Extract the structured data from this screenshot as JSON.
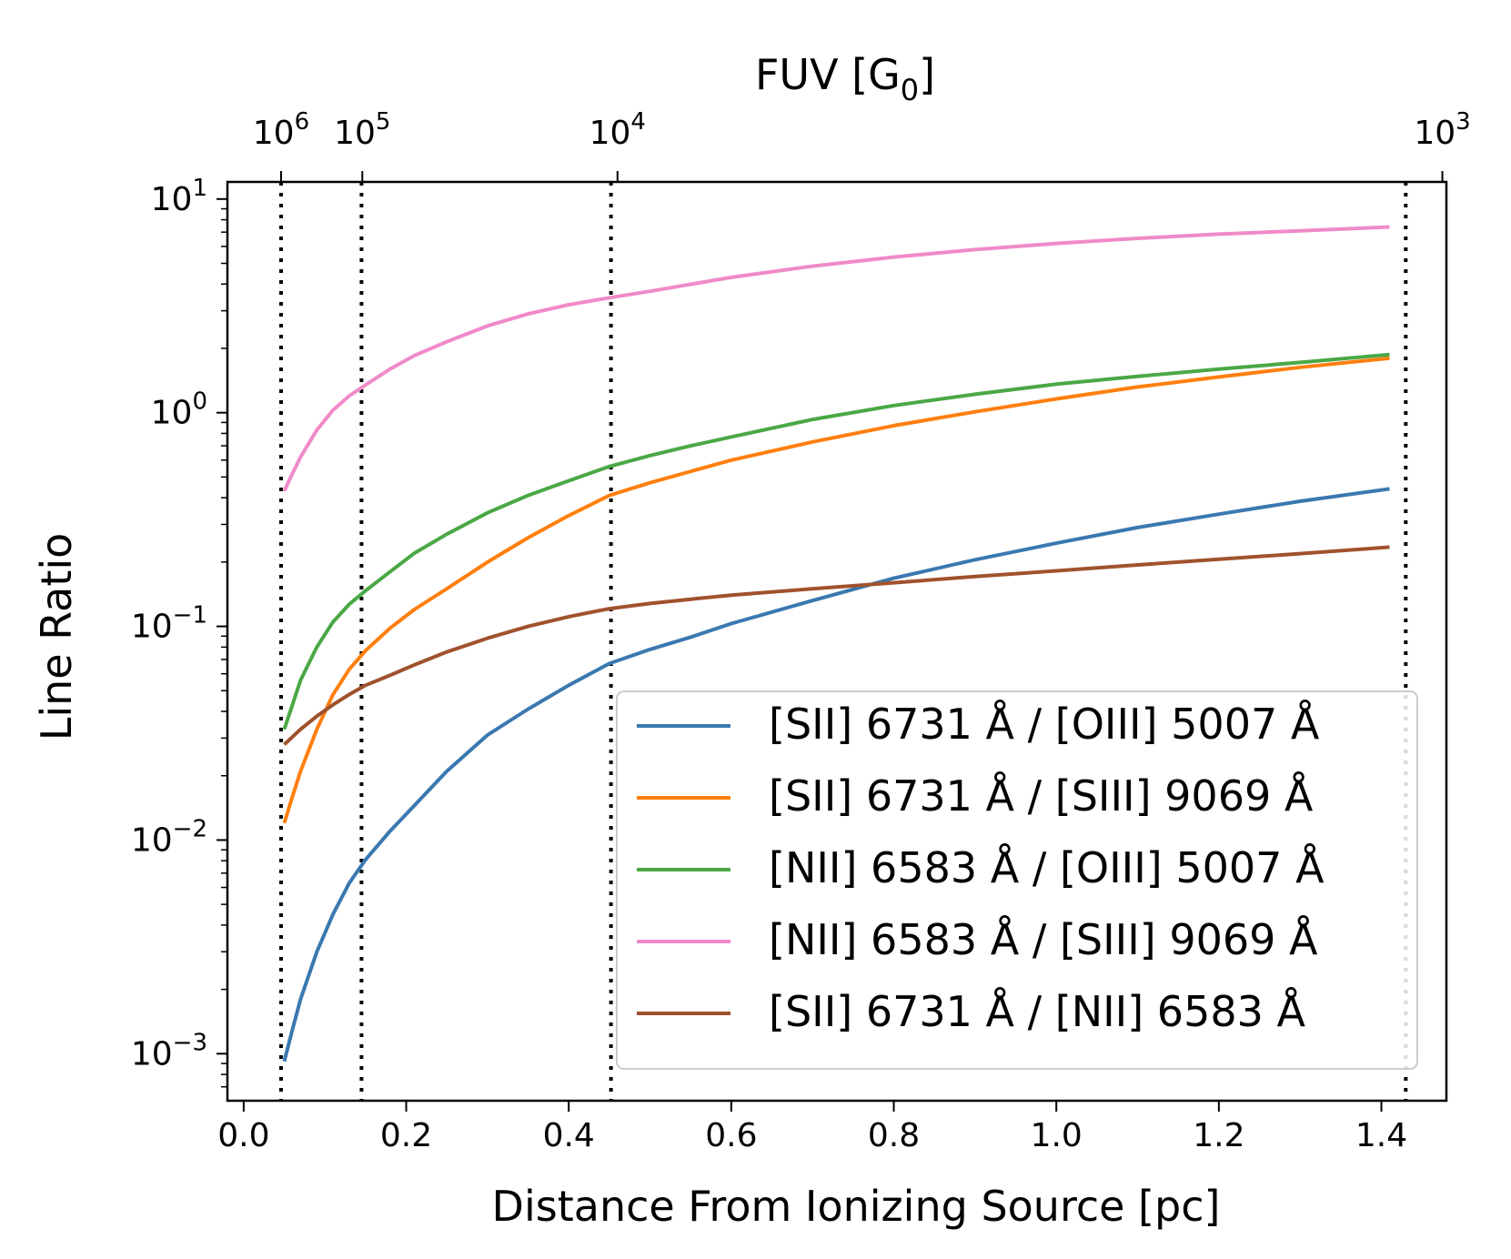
{
  "chart_data": {
    "type": "line",
    "title": "",
    "xlabel": "Distance From Ionizing Source [pc]",
    "ylabel": "Line Ratio",
    "top_axis_label": {
      "main": "FUV [G",
      "sub": "0",
      "end": "]"
    },
    "xlim": [
      -0.02,
      1.48
    ],
    "ylim_log10": [
      -3.22,
      1.08
    ],
    "yscale": "log",
    "grid": false,
    "legend_position": "lower right",
    "x_ticks": [
      "0.0",
      "0.2",
      "0.4",
      "0.6",
      "0.8",
      "1.0",
      "1.2",
      "1.4"
    ],
    "x_tick_values": [
      0.0,
      0.2,
      0.4,
      0.6,
      0.8,
      1.0,
      1.2,
      1.4
    ],
    "y_ticks": [
      {
        "exp": 1,
        "base": "10",
        "sup": "1"
      },
      {
        "exp": 0,
        "base": "10",
        "sup": "0"
      },
      {
        "exp": -1,
        "base": "10",
        "sup": "−1"
      },
      {
        "exp": -2,
        "base": "10",
        "sup": "−2"
      },
      {
        "exp": -3,
        "base": "10",
        "sup": "−3"
      }
    ],
    "top_ticks": [
      {
        "x": 0.046,
        "base": "10",
        "sup": "6"
      },
      {
        "x": 0.146,
        "base": "10",
        "sup": "5"
      },
      {
        "x": 0.46,
        "base": "10",
        "sup": "4"
      },
      {
        "x": 1.475,
        "base": "10",
        "sup": "3"
      }
    ],
    "vertical_dotted_lines_x": [
      0.046,
      0.145,
      0.452,
      1.43
    ],
    "series": [
      {
        "name": "[SII] 6731 Å / [OIII] 5007 Å",
        "color": "#3a78b0",
        "x": [
          0.05,
          0.06,
          0.07,
          0.09,
          0.11,
          0.13,
          0.15,
          0.18,
          0.21,
          0.25,
          0.3,
          0.35,
          0.4,
          0.45,
          0.5,
          0.55,
          0.6,
          0.7,
          0.8,
          0.9,
          1.0,
          1.1,
          1.2,
          1.3,
          1.41
        ],
        "y": [
          0.00092,
          0.0013,
          0.0018,
          0.003,
          0.0045,
          0.0063,
          0.0081,
          0.011,
          0.0145,
          0.021,
          0.031,
          0.041,
          0.053,
          0.067,
          0.078,
          0.089,
          0.103,
          0.132,
          0.168,
          0.205,
          0.245,
          0.29,
          0.335,
          0.385,
          0.44
        ]
      },
      {
        "name": "[SII] 6731 Å / [SIII] 9069 Å",
        "color": "#ff7f0e",
        "x": [
          0.05,
          0.06,
          0.07,
          0.09,
          0.11,
          0.13,
          0.15,
          0.18,
          0.21,
          0.25,
          0.3,
          0.35,
          0.4,
          0.45,
          0.5,
          0.6,
          0.7,
          0.8,
          0.9,
          1.0,
          1.1,
          1.2,
          1.3,
          1.41
        ],
        "y": [
          0.012,
          0.016,
          0.021,
          0.033,
          0.048,
          0.063,
          0.077,
          0.098,
          0.12,
          0.15,
          0.2,
          0.26,
          0.33,
          0.41,
          0.47,
          0.6,
          0.73,
          0.87,
          1.01,
          1.16,
          1.32,
          1.47,
          1.63,
          1.8
        ]
      },
      {
        "name": "[NII] 6583 Å / [OIII] 5007 Å",
        "color": "#4aa845",
        "x": [
          0.05,
          0.06,
          0.07,
          0.09,
          0.11,
          0.13,
          0.15,
          0.18,
          0.21,
          0.25,
          0.3,
          0.35,
          0.4,
          0.45,
          0.5,
          0.55,
          0.6,
          0.7,
          0.8,
          0.9,
          1.0,
          1.1,
          1.2,
          1.3,
          1.41
        ],
        "y": [
          0.033,
          0.043,
          0.056,
          0.08,
          0.105,
          0.127,
          0.147,
          0.18,
          0.22,
          0.27,
          0.34,
          0.41,
          0.48,
          0.56,
          0.63,
          0.7,
          0.77,
          0.93,
          1.08,
          1.22,
          1.36,
          1.48,
          1.6,
          1.72,
          1.87
        ]
      },
      {
        "name": "[NII] 6583 Å / [SIII] 9069 Å",
        "color": "#f08ac8",
        "x": [
          0.05,
          0.06,
          0.07,
          0.09,
          0.11,
          0.13,
          0.15,
          0.18,
          0.21,
          0.25,
          0.3,
          0.35,
          0.4,
          0.45,
          0.5,
          0.6,
          0.7,
          0.8,
          0.9,
          1.0,
          1.1,
          1.2,
          1.3,
          1.41
        ],
        "y": [
          0.43,
          0.52,
          0.62,
          0.83,
          1.03,
          1.2,
          1.35,
          1.6,
          1.85,
          2.15,
          2.55,
          2.9,
          3.2,
          3.45,
          3.7,
          4.3,
          4.85,
          5.35,
          5.8,
          6.2,
          6.55,
          6.85,
          7.1,
          7.4
        ]
      },
      {
        "name": "[SII] 6731 Å / [NII] 6583 Å",
        "color": "#a0522d",
        "x": [
          0.05,
          0.07,
          0.09,
          0.11,
          0.13,
          0.15,
          0.18,
          0.21,
          0.25,
          0.3,
          0.35,
          0.4,
          0.45,
          0.5,
          0.55,
          0.6,
          0.7,
          0.8,
          0.9,
          1.0,
          1.1,
          1.2,
          1.3,
          1.41
        ],
        "y": [
          0.028,
          0.033,
          0.038,
          0.043,
          0.048,
          0.053,
          0.059,
          0.066,
          0.076,
          0.088,
          0.1,
          0.111,
          0.121,
          0.128,
          0.134,
          0.14,
          0.15,
          0.16,
          0.171,
          0.182,
          0.194,
          0.206,
          0.219,
          0.235
        ]
      }
    ]
  }
}
